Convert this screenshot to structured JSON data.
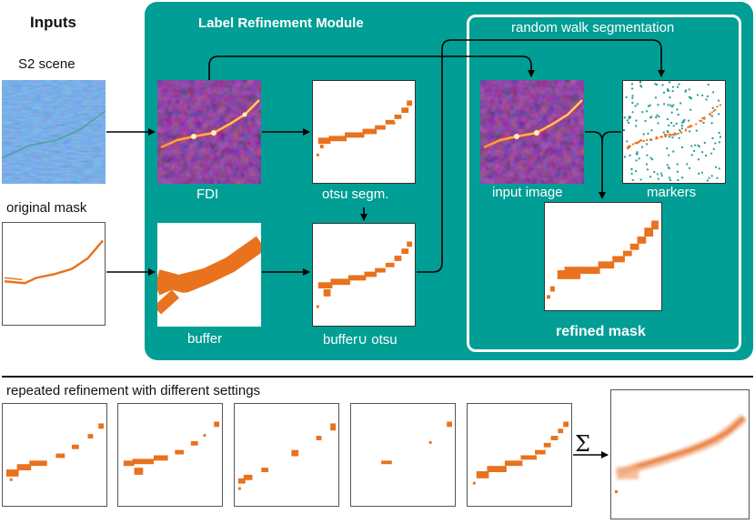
{
  "inputs_heading": "Inputs",
  "module_title": "Label Refinement Module",
  "rw_title": "random walk segmentation",
  "labels": {
    "s2_scene": "S2 scene",
    "original_mask": "original mask",
    "fdi": "FDI",
    "otsu": "otsu segm.",
    "buffer": "buffer",
    "buffer_union_otsu": "buffer∪ otsu",
    "input_image": "input image",
    "markers": "markers",
    "refined_mask": "refined mask"
  },
  "bottom_heading": "repeated refinement with different settings",
  "sum_symbol": "Σ",
  "colors": {
    "teal": "#009e94",
    "orange": "#e8721e",
    "marker_teal": "#1a9a96",
    "white": "#ffffff"
  }
}
